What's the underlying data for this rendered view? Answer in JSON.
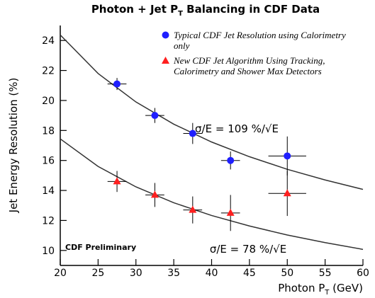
{
  "chart_data": {
    "type": "errorbar",
    "title_parts": [
      "Photon + Jet P",
      "T",
      " Balancing in CDF Data"
    ],
    "x_label_parts": [
      "Photon P",
      "T",
      " (GeV)"
    ],
    "y_label": "Jet Energy Resolution (%)",
    "xlim": [
      20,
      60
    ],
    "xticks": [
      20,
      25,
      30,
      35,
      40,
      45,
      50,
      55,
      60
    ],
    "ylim": [
      9,
      25
    ],
    "yticks": [
      10,
      12,
      14,
      16,
      18,
      20,
      22,
      24
    ],
    "series": [
      {
        "name": "Typical CDF Jet Resolution using Calorimetry only",
        "color": "#1f1fff",
        "marker": "circle",
        "x": [
          27.5,
          32.5,
          37.5,
          42.5,
          50
        ],
        "values": [
          21.1,
          19.0,
          17.8,
          16.0,
          16.3
        ],
        "y_errors": [
          0.4,
          0.5,
          0.7,
          0.6,
          1.3
        ],
        "x_errors": [
          1.25,
          1.25,
          1.25,
          1.25,
          2.5
        ]
      },
      {
        "name": "New CDF Jet Algorithm Using Tracking, Calorimetry and Shower Max Detectors",
        "color": "#ff1f1f",
        "marker": "triangle",
        "x": [
          27.5,
          32.5,
          37.5,
          42.5,
          50
        ],
        "values": [
          14.6,
          13.7,
          12.7,
          12.5,
          13.8
        ],
        "y_errors": [
          0.7,
          0.8,
          0.9,
          1.2,
          1.5
        ],
        "x_errors": [
          1.25,
          1.25,
          1.25,
          1.25,
          2.5
        ]
      }
    ],
    "fit_curves": [
      {
        "color": "#333333",
        "x": [
          20,
          25,
          30,
          35,
          40,
          45,
          50,
          55,
          60
        ],
        "values": [
          24.37,
          21.8,
          19.9,
          18.42,
          17.23,
          16.25,
          15.41,
          14.7,
          14.07
        ]
      },
      {
        "color": "#333333",
        "x": [
          20,
          25,
          30,
          35,
          40,
          45,
          50,
          55,
          60
        ],
        "values": [
          17.44,
          15.6,
          14.24,
          13.18,
          12.33,
          11.63,
          11.03,
          10.52,
          10.07
        ]
      }
    ],
    "annotations": [
      "σ/E = 109 %/√E",
      "σ/E = 78 %/√E",
      "CDF Preliminary"
    ]
  }
}
